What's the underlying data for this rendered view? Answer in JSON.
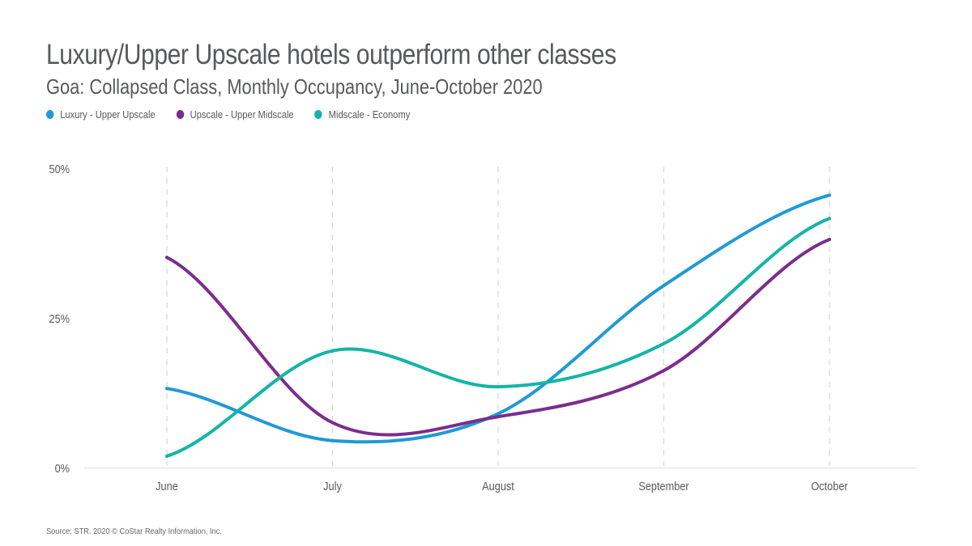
{
  "header": {
    "title": "Luxury/Upper Upscale hotels outperform other classes",
    "subtitle": "Goa: Collapsed Class, Monthly Occupancy, June-October 2020"
  },
  "footer": {
    "source": "Source: STR. 2020 © CoStar Realty Information, Inc."
  },
  "chart_data": {
    "type": "line",
    "title": "Luxury/Upper Upscale hotels outperform other classes",
    "subtitle": "Goa: Collapsed Class, Monthly Occupancy, June-October 2020",
    "xlabel": "",
    "ylabel": "",
    "categories": [
      "June",
      "July",
      "August",
      "September",
      "October"
    ],
    "ylim": [
      0,
      50
    ],
    "yticks": [
      0,
      25,
      50
    ],
    "ytick_labels": [
      "0%",
      "25%",
      "50%"
    ],
    "grid": "vertical dashed",
    "legend_position": "top-left",
    "curve": "smooth",
    "series": [
      {
        "name": "Luxury - Upper Upscale",
        "color": "#1f9ad6",
        "values": [
          13.2,
          4.5,
          9.0,
          30.4,
          45.5
        ]
      },
      {
        "name": "Upscale - Upper Midscale",
        "color": "#7b2d8e",
        "values": [
          35.1,
          7.5,
          8.5,
          16.2,
          38.1
        ]
      },
      {
        "name": "Midscale - Economy",
        "color": "#14b5a7",
        "values": [
          1.9,
          19.5,
          13.5,
          20.7,
          41.6
        ]
      }
    ]
  }
}
